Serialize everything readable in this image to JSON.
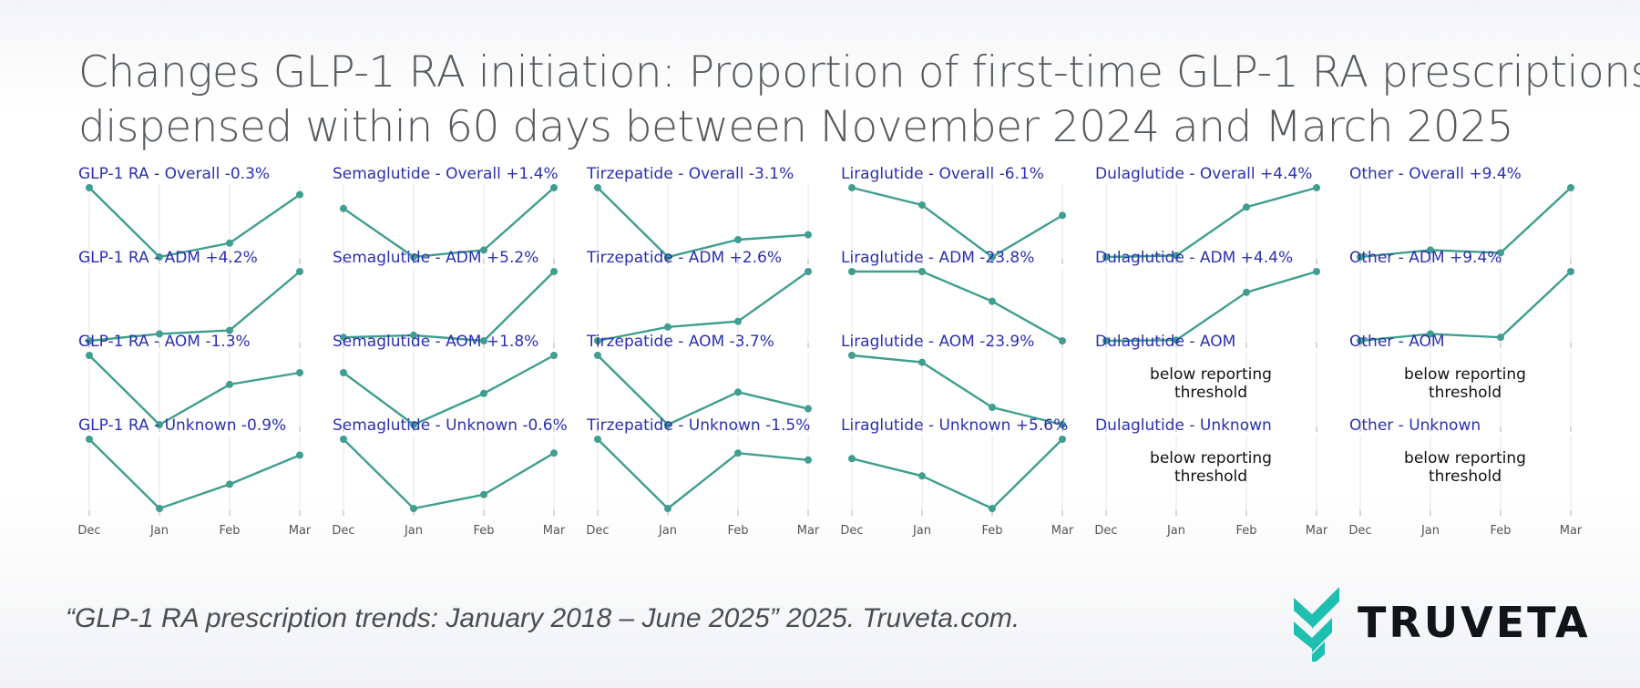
{
  "header": {
    "title_line1": "Changes GLP-1 RA initiation: Proportion of first-time GLP-1 RA prescriptions",
    "title_line2": "dispensed within 60 days between November 2024 and March 2025"
  },
  "footer": {
    "citation": "“GLP-1 RA prescription trends: January 2018 – June 2025” 2025. Truveta.com.",
    "logo_text": "TRUVETA"
  },
  "colors": {
    "series": "#3f9e8f",
    "panel_title": "#2b2fb0",
    "grid": "#e6e6e6",
    "logo_teal": "#1ebfb0",
    "tick_label": "#555555"
  },
  "chart_data": {
    "type": "line",
    "layout": "small-multiples grid, 4 rows x 6 columns",
    "x": [
      "Dec",
      "Jan",
      "Feb",
      "Mar"
    ],
    "below_threshold_text": "below reporting threshold",
    "panels": [
      {
        "title": "GLP-1 RA - Overall -0.3%",
        "values": [
          1.0,
          0.0,
          0.2,
          0.9
        ]
      },
      {
        "title": "Semaglutide - Overall +1.4%",
        "values": [
          0.7,
          0.0,
          0.1,
          1.0
        ]
      },
      {
        "title": "Tirzepatide - Overall -3.1%",
        "values": [
          1.0,
          0.0,
          0.25,
          0.32
        ]
      },
      {
        "title": "Liraglutide - Overall -6.1%",
        "values": [
          1.0,
          0.75,
          0.0,
          0.6
        ]
      },
      {
        "title": "Dulaglutide - Overall +4.4%",
        "values": [
          0.0,
          0.02,
          0.72,
          1.0
        ]
      },
      {
        "title": "Other - Overall +9.4%",
        "values": [
          0.0,
          0.1,
          0.06,
          1.0
        ]
      },
      {
        "title": "GLP-1 RA - ADM +4.2%",
        "values": [
          0.0,
          0.1,
          0.15,
          1.0
        ]
      },
      {
        "title": "Semaglutide - ADM +5.2%",
        "values": [
          0.05,
          0.08,
          0.0,
          1.0
        ]
      },
      {
        "title": "Tirzepatide - ADM +2.6%",
        "values": [
          0.0,
          0.2,
          0.28,
          1.0
        ]
      },
      {
        "title": "Liraglutide - ADM -23.8%",
        "values": [
          1.0,
          1.0,
          0.57,
          0.0
        ]
      },
      {
        "title": "Dulaglutide - ADM +4.4%",
        "values": [
          0.0,
          0.01,
          0.7,
          1.0
        ]
      },
      {
        "title": "Other - ADM +9.4%",
        "values": [
          0.0,
          0.1,
          0.05,
          1.0
        ]
      },
      {
        "title": "GLP-1 RA - AOM -1.3%",
        "values": [
          1.0,
          0.0,
          0.58,
          0.75
        ]
      },
      {
        "title": "Semaglutide - AOM +1.8%",
        "values": [
          0.75,
          0.0,
          0.45,
          1.0
        ]
      },
      {
        "title": "Tirzepatide - AOM -3.7%",
        "values": [
          1.0,
          0.0,
          0.47,
          0.23
        ]
      },
      {
        "title": "Liraglutide - AOM -23.9%",
        "values": [
          1.0,
          0.9,
          0.25,
          0.0
        ]
      },
      {
        "title": "Dulaglutide - AOM",
        "values": null
      },
      {
        "title": "Other - AOM",
        "values": null
      },
      {
        "title": "GLP-1 RA - Unknown -0.9%",
        "values": [
          1.0,
          0.0,
          0.35,
          0.77
        ]
      },
      {
        "title": "Semaglutide - Unknown -0.6%",
        "values": [
          1.0,
          0.0,
          0.2,
          0.8
        ]
      },
      {
        "title": "Tirzepatide - Unknown -1.5%",
        "values": [
          1.0,
          0.0,
          0.8,
          0.7
        ]
      },
      {
        "title": "Liraglutide - Unknown +5.6%",
        "values": [
          0.72,
          0.47,
          0.0,
          1.0
        ]
      },
      {
        "title": "Dulaglutide - Unknown",
        "values": null
      },
      {
        "title": "Other - Unknown",
        "values": null
      }
    ]
  }
}
